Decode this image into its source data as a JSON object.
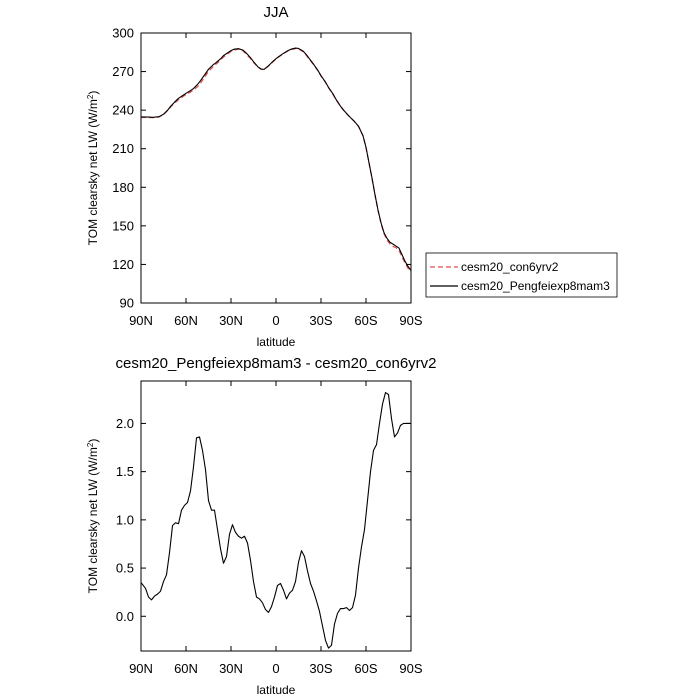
{
  "chart_data": [
    {
      "type": "line",
      "title": "JJA",
      "xlabel": "latitude",
      "ylabel": "TOM clearsky net LW (W/m",
      "ylabel_sup": "2",
      "ylabel_close": ")",
      "xlim": [
        90,
        -90
      ],
      "ylim": [
        90,
        300
      ],
      "xticks": [
        {
          "value": 90,
          "label": "90N"
        },
        {
          "value": 60,
          "label": "60N"
        },
        {
          "value": 30,
          "label": "30N"
        },
        {
          "value": 0,
          "label": "0"
        },
        {
          "value": -30,
          "label": "30S"
        },
        {
          "value": -60,
          "label": "60S"
        },
        {
          "value": -90,
          "label": "90S"
        }
      ],
      "yticks": [
        {
          "value": 90,
          "label": "90"
        },
        {
          "value": 120,
          "label": "120"
        },
        {
          "value": 150,
          "label": "150"
        },
        {
          "value": 180,
          "label": "180"
        },
        {
          "value": 210,
          "label": "210"
        },
        {
          "value": 240,
          "label": "240"
        },
        {
          "value": 270,
          "label": "270"
        },
        {
          "value": 300,
          "label": "300"
        }
      ],
      "legend_position": "right",
      "series": [
        {
          "name": "cesm20_con6yrv2",
          "color": "#e05050",
          "dash": true,
          "x": [
            90,
            85,
            82,
            78,
            75,
            72,
            70,
            68,
            65,
            62,
            60,
            57,
            55,
            52,
            50,
            47,
            45,
            42,
            40,
            37,
            35,
            32,
            30,
            28,
            25,
            22,
            20,
            17,
            15,
            12,
            10,
            8,
            5,
            2,
            0,
            -2,
            -5,
            -8,
            -10,
            -13,
            -15,
            -18,
            -20,
            -22,
            -25,
            -28,
            -30,
            -33,
            -35,
            -38,
            -40,
            -43,
            -45,
            -48,
            -50,
            -52,
            -55,
            -58,
            -60,
            -62,
            -64,
            -66,
            -68,
            -70,
            -72,
            -74,
            -76,
            -78,
            -80,
            -82,
            -84,
            -86,
            -88,
            -90
          ],
          "y": [
            234.4,
            234.3,
            234.2,
            234.7,
            236.5,
            240,
            242.8,
            245,
            248.2,
            250.6,
            252.1,
            254.1,
            255.6,
            258.7,
            261.6,
            266.5,
            270.3,
            273.6,
            275.8,
            279,
            281.3,
            284,
            285.6,
            286.7,
            287.5,
            286.1,
            283.8,
            280.1,
            277.2,
            273.5,
            271.8,
            271.6,
            274.3,
            277.6,
            279.7,
            281.6,
            283.9,
            286.1,
            287.1,
            287.9,
            287.7,
            285.5,
            283,
            279.9,
            275.5,
            270.5,
            266.6,
            261.6,
            257.5,
            252.3,
            248.2,
            243,
            240,
            236.1,
            233.7,
            231.5,
            227.4,
            220,
            211,
            199,
            187,
            174,
            162,
            152,
            144,
            139,
            136,
            134,
            133,
            131,
            126,
            121,
            117,
            114
          ]
        },
        {
          "name": "cesm20_Pengfeiexp8mam3",
          "color": "#000000",
          "dash": false,
          "x": [
            90,
            85,
            82,
            78,
            75,
            72,
            70,
            68,
            65,
            62,
            60,
            57,
            55,
            52,
            50,
            47,
            45,
            42,
            40,
            37,
            35,
            32,
            30,
            28,
            25,
            22,
            20,
            17,
            15,
            12,
            10,
            8,
            5,
            2,
            0,
            -2,
            -5,
            -8,
            -10,
            -13,
            -15,
            -18,
            -20,
            -22,
            -25,
            -28,
            -30,
            -33,
            -35,
            -38,
            -40,
            -43,
            -45,
            -48,
            -50,
            -52,
            -55,
            -58,
            -60,
            -62,
            -64,
            -66,
            -68,
            -70,
            -72,
            -74,
            -76,
            -78,
            -80,
            -82,
            -84,
            -86,
            -88,
            -90
          ],
          "y": [
            234.7,
            234.6,
            234.4,
            234.9,
            236.8,
            240.3,
            243.3,
            245.8,
            249.2,
            251.5,
            253.1,
            255.2,
            256.8,
            260.4,
            263.5,
            268.4,
            271.8,
            275.2,
            276.9,
            279.9,
            282.4,
            284.8,
            286.3,
            287.4,
            287.8,
            286.7,
            284.6,
            280.8,
            277.7,
            273.6,
            272,
            271.7,
            274.5,
            278,
            280,
            281.8,
            284.2,
            286.3,
            287.4,
            288.3,
            288,
            286,
            283.5,
            280.4,
            275.8,
            270.8,
            266.8,
            261.8,
            257.7,
            252.6,
            248.4,
            243.1,
            240.1,
            236.2,
            233.8,
            231.6,
            227.5,
            220.1,
            211.1,
            199.1,
            187.2,
            174.2,
            162.3,
            152.5,
            144.7,
            140.3,
            137.2,
            135.8,
            134.3,
            132.7,
            127.6,
            122.5,
            118.5,
            115.2
          ]
        }
      ]
    },
    {
      "type": "line",
      "title": "cesm20_Pengfeiexp8mam3 - cesm20_con6yrv2",
      "xlabel": "latitude",
      "ylabel": "TOM clearsky net LW (W/m",
      "ylabel_sup": "2",
      "ylabel_close": ")",
      "xlim": [
        90,
        -90
      ],
      "ylim": [
        -0.36,
        2.44
      ],
      "xticks": [
        {
          "value": 90,
          "label": "90N"
        },
        {
          "value": 60,
          "label": "60N"
        },
        {
          "value": 30,
          "label": "30N"
        },
        {
          "value": 0,
          "label": "0"
        },
        {
          "value": -30,
          "label": "30S"
        },
        {
          "value": -60,
          "label": "60S"
        },
        {
          "value": -90,
          "label": "90S"
        }
      ],
      "yticks": [
        {
          "value": 0,
          "label": "0.0"
        },
        {
          "value": 0.5,
          "label": "0.5"
        },
        {
          "value": 1.0,
          "label": "1.0"
        },
        {
          "value": 1.5,
          "label": "1.5"
        },
        {
          "value": 2.0,
          "label": "2.0"
        }
      ],
      "series": [
        {
          "color": "#000000",
          "dash": false,
          "x": [
            90,
            87,
            85,
            83,
            81,
            79,
            77,
            75,
            73,
            71,
            69,
            67,
            65,
            63,
            61,
            59,
            57,
            55,
            53,
            51,
            49,
            47,
            45,
            43,
            41,
            39,
            37,
            35,
            33,
            31,
            29,
            27,
            25,
            23,
            21,
            19,
            17,
            15,
            13,
            11,
            9,
            7,
            5,
            3,
            1,
            -1,
            -3,
            -5,
            -7,
            -9,
            -11,
            -13,
            -15,
            -17,
            -19,
            -21,
            -23,
            -25,
            -27,
            -29,
            -31,
            -33,
            -35,
            -37,
            -39,
            -41,
            -43,
            -45,
            -47,
            -49,
            -51,
            -53,
            -55,
            -57,
            -59,
            -61,
            -63,
            -65,
            -67,
            -69,
            -71,
            -73,
            -75,
            -77,
            -79,
            -81,
            -83,
            -85,
            -87,
            -89,
            -90
          ],
          "y": [
            0.35,
            0.29,
            0.2,
            0.17,
            0.21,
            0.23,
            0.26,
            0.36,
            0.43,
            0.66,
            0.94,
            0.97,
            0.96,
            1.1,
            1.15,
            1.18,
            1.3,
            1.55,
            1.85,
            1.86,
            1.72,
            1.52,
            1.2,
            1.1,
            1.1,
            0.9,
            0.7,
            0.55,
            0.62,
            0.85,
            0.95,
            0.87,
            0.83,
            0.81,
            0.83,
            0.76,
            0.58,
            0.36,
            0.2,
            0.18,
            0.14,
            0.07,
            0.04,
            0.1,
            0.2,
            0.32,
            0.34,
            0.27,
            0.18,
            0.24,
            0.27,
            0.36,
            0.56,
            0.68,
            0.62,
            0.47,
            0.34,
            0.26,
            0.16,
            0.05,
            -0.1,
            -0.25,
            -0.33,
            -0.3,
            -0.08,
            0.03,
            0.08,
            0.08,
            0.09,
            0.06,
            0.09,
            0.22,
            0.5,
            0.72,
            0.9,
            1.2,
            1.5,
            1.72,
            1.78,
            2.0,
            2.2,
            2.32,
            2.3,
            2.05,
            1.86,
            1.9,
            1.98,
            2.0,
            2.0,
            2.0,
            2.0
          ]
        }
      ]
    }
  ]
}
